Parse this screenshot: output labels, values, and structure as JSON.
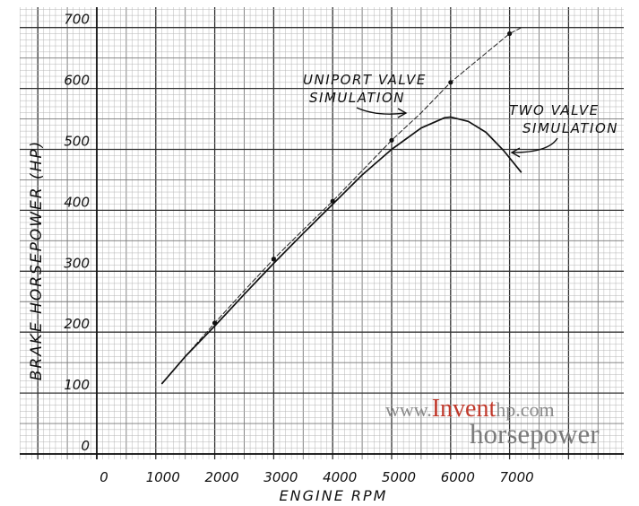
{
  "chart_data": {
    "type": "line",
    "title": "",
    "xlabel": "ENGINE RPM",
    "ylabel": "BRAKE HORSEPOWER (HP)",
    "xlim": [
      0,
      8500
    ],
    "ylim": [
      0,
      700
    ],
    "x_ticks": [
      "0",
      "1000",
      "2000",
      "3000",
      "4000",
      "5000",
      "6000",
      "7000"
    ],
    "y_ticks": [
      "0",
      "100",
      "200",
      "300",
      "400",
      "500",
      "600",
      "700"
    ],
    "grid": true,
    "series": [
      {
        "name": "UNIPORT VALVE SIMULATION",
        "x": [
          1100,
          1500,
          2000,
          2500,
          3000,
          3500,
          4000,
          4500,
          5000,
          5500,
          6000,
          6500,
          7000,
          7200
        ],
        "y": [
          115,
          160,
          215,
          268,
          320,
          368,
          415,
          465,
          515,
          560,
          610,
          650,
          690,
          700
        ],
        "markers_at": [
          2000,
          3000,
          4000,
          5000,
          6000,
          7000
        ]
      },
      {
        "name": "TWO VALVE SIMULATION",
        "x": [
          1100,
          1500,
          2000,
          2500,
          3000,
          3500,
          4000,
          4500,
          5000,
          5500,
          5900,
          6000,
          6300,
          6600,
          6900,
          7200
        ],
        "y": [
          115,
          160,
          210,
          262,
          313,
          362,
          410,
          458,
          500,
          535,
          552,
          553,
          546,
          528,
          498,
          462
        ]
      }
    ],
    "annotations": [
      {
        "text": "UNIPORT VALVE",
        "line": 1
      },
      {
        "text": "SIMULATION",
        "line": 2
      },
      {
        "text": "TWO VALVE",
        "line": 1
      },
      {
        "text": "SIMULATION",
        "line": 2
      }
    ]
  },
  "watermark": {
    "prefix": "www.",
    "brand": "Invent",
    "suffix": "hp.com",
    "tagline": "horsepower",
    "brand_color": "#c0392b",
    "gray_color": "#8a8a8a"
  }
}
